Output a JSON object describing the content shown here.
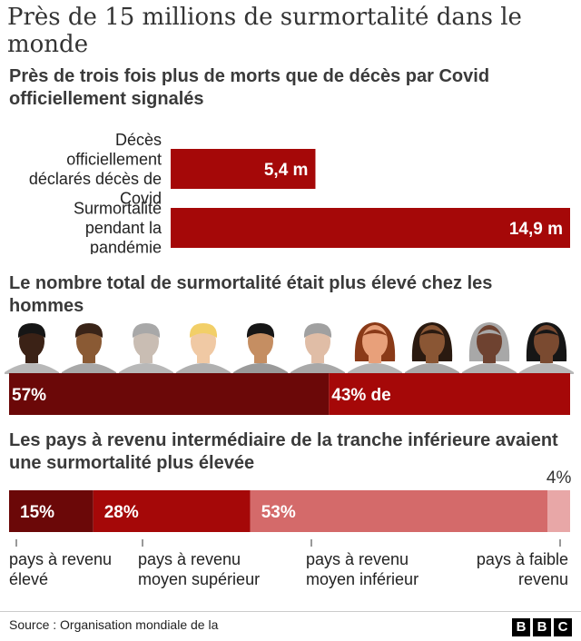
{
  "title": "Près de 15 millions de surmortalité dans le monde",
  "footer": {
    "source": "Source : Organisation mondiale de la",
    "logo": [
      "B",
      "B",
      "C"
    ]
  },
  "colors": {
    "bar_dark_red": "#a50808",
    "men_bar": "#6b0808",
    "women_bar": "#a50808",
    "income_high": "#6b0808",
    "income_upper_middle": "#a50808",
    "income_lower_middle": "#d46a6a",
    "income_low": "#e8a7a7"
  },
  "chart_data": [
    {
      "type": "bar",
      "orientation": "horizontal",
      "title": "Près de trois fois plus de morts que de décès par Covid officiellement signalés",
      "categories": [
        "Décès officiellement déclarés décès de Covid",
        "Surmortalité pendant la pandémie"
      ],
      "category_lines": [
        [
          "Décès",
          "officiellement",
          "déclarés décès de",
          "Covid"
        ],
        [
          "Surmortalité",
          "pendant la",
          "pandémie"
        ]
      ],
      "values": [
        5.4,
        14.9
      ],
      "value_labels": [
        "5,4 m",
        "14,9 m"
      ],
      "unit": "millions"
    },
    {
      "type": "bar",
      "orientation": "stacked-horizontal",
      "title": "Le nombre total de surmortalité était plus élevé chez les hommes",
      "series": [
        {
          "value": 57,
          "label": "57%"
        },
        {
          "value": 43,
          "label": "43% de"
        }
      ],
      "people": {
        "men": 6,
        "women": 4
      }
    },
    {
      "type": "bar",
      "orientation": "stacked-horizontal",
      "title": "Les pays à revenu intermédiaire de la tranche inférieure avaient une surmortalité plus élevée",
      "series": [
        {
          "value": 15,
          "label": "15%",
          "category": [
            "pays à revenu",
            "élevé"
          ]
        },
        {
          "value": 28,
          "label": "28%",
          "category": [
            "pays à revenu",
            "moyen supérieur"
          ]
        },
        {
          "value": 53,
          "label": "53%",
          "category": [
            "pays à revenu",
            "moyen inférieur"
          ]
        },
        {
          "value": 4,
          "label": "4%",
          "category": [
            "pays à faible",
            "revenu"
          ]
        }
      ]
    }
  ]
}
